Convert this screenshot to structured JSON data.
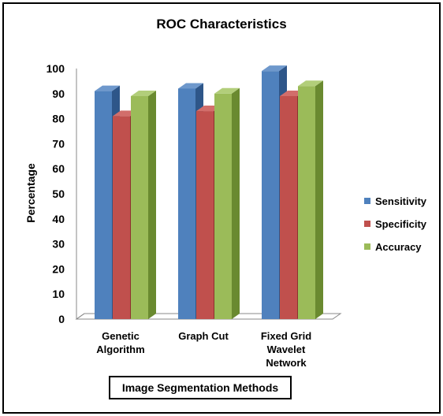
{
  "chart_data": {
    "type": "bar",
    "title": "ROC Characteristics",
    "xlabel": "Image Segmentation Methods",
    "ylabel": "Percentage",
    "ylim": [
      0,
      100
    ],
    "yticks": [
      "0",
      "10",
      "20",
      "30",
      "40",
      "50",
      "60",
      "70",
      "80",
      "90",
      "100"
    ],
    "categories": [
      [
        "Genetic",
        "Algorithm"
      ],
      [
        "Graph Cut"
      ],
      [
        "Fixed Grid",
        "Wavelet",
        "Network"
      ]
    ],
    "series": [
      {
        "name": "Sensitivity",
        "values": [
          91,
          92,
          99
        ]
      },
      {
        "name": "Specificity",
        "values": [
          81,
          83,
          89
        ]
      },
      {
        "name": "Accuracy",
        "values": [
          89,
          90,
          93
        ]
      }
    ],
    "legend": "right",
    "grid": false,
    "style": "3d-column"
  },
  "colors": {
    "Sensitivity": {
      "front": "#4F81BD",
      "side": "#2E5689",
      "top": "#6E98CC"
    },
    "Specificity": {
      "front": "#C0504D",
      "side": "#8C312E",
      "top": "#D26E6B"
    },
    "Accuracy": {
      "front": "#9BBB59",
      "side": "#6A8A30",
      "top": "#B2CE7A"
    }
  }
}
